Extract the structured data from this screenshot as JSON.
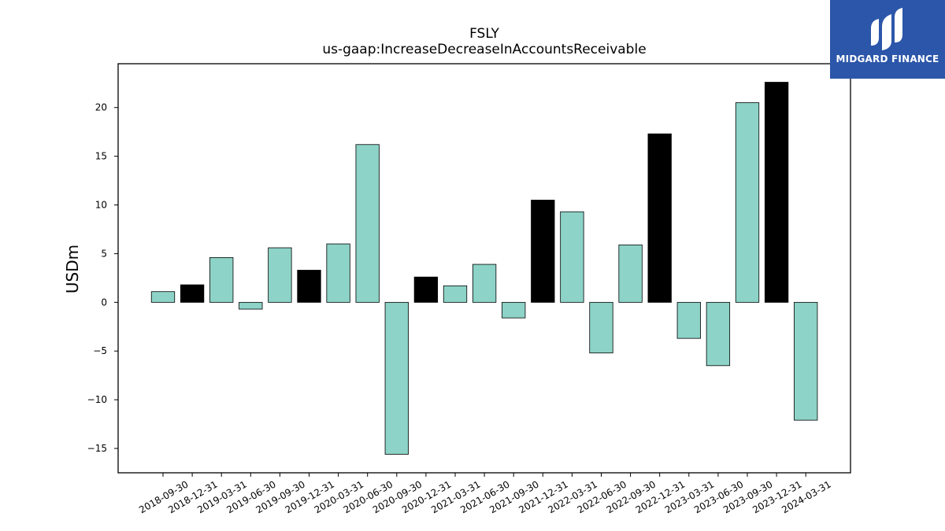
{
  "chart_data": {
    "type": "bar",
    "title": "FSLY",
    "subtitle": "us-gaap:IncreaseDecreaseInAccountsReceivable",
    "xlabel": "",
    "ylabel": "USDm",
    "ylim": [
      -17.5,
      24.5
    ],
    "yticks": [
      -15,
      -10,
      -5,
      0,
      5,
      10,
      15,
      20
    ],
    "grid": false,
    "categories": [
      "2018-09-30",
      "2018-12-31",
      "2019-03-31",
      "2019-06-30",
      "2019-09-30",
      "2019-12-31",
      "2020-03-31",
      "2020-06-30",
      "2020-09-30",
      "2020-12-31",
      "2021-03-31",
      "2021-06-30",
      "2021-09-30",
      "2021-12-31",
      "2022-03-31",
      "2022-06-30",
      "2022-09-30",
      "2022-12-31",
      "2023-03-31",
      "2023-06-30",
      "2023-09-30",
      "2023-12-31",
      "2024-03-31"
    ],
    "values": [
      1.1,
      1.8,
      4.6,
      -0.7,
      5.6,
      3.3,
      6.0,
      16.2,
      -15.6,
      2.6,
      1.7,
      3.9,
      -1.6,
      10.5,
      9.3,
      -5.2,
      5.9,
      17.3,
      -3.7,
      -6.5,
      20.5,
      22.6,
      -12.1
    ],
    "bar_colors": [
      "#8dd3c7",
      "#000000",
      "#8dd3c7",
      "#8dd3c7",
      "#8dd3c7",
      "#000000",
      "#8dd3c7",
      "#8dd3c7",
      "#8dd3c7",
      "#000000",
      "#8dd3c7",
      "#8dd3c7",
      "#8dd3c7",
      "#000000",
      "#8dd3c7",
      "#8dd3c7",
      "#8dd3c7",
      "#000000",
      "#8dd3c7",
      "#8dd3c7",
      "#8dd3c7",
      "#000000",
      "#8dd3c7"
    ]
  },
  "logo": {
    "text": "MIDGARD FINANCE",
    "background": "#2c56a9",
    "icon": "midgard-logo-icon"
  }
}
